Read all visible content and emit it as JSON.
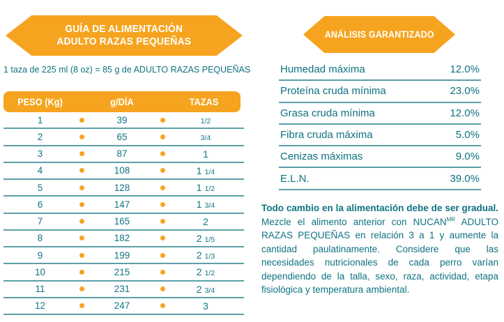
{
  "colors": {
    "accent_yellow": "#F6A41F",
    "teal_text": "#0E7280",
    "divider_teal": "#5C9FA8",
    "banner_text": "#FFFFFF"
  },
  "left": {
    "banner": {
      "line1": "GUÍA DE ALIMENTACIÓN",
      "line2": "ADULTO RAZAS PEQUEÑAS"
    },
    "subtitle": "1 taza de 225 ml (8 oz) = 85 g de ADULTO RAZAS PEQUEÑAS",
    "table": {
      "headers": [
        "PESO (Kg)",
        "g/DÍA",
        "TAZAS"
      ],
      "rows": [
        {
          "weight": "1",
          "grams": "39",
          "cups_whole": "",
          "cups_frac": "1/2"
        },
        {
          "weight": "2",
          "grams": "65",
          "cups_whole": "",
          "cups_frac": "3/4"
        },
        {
          "weight": "3",
          "grams": "87",
          "cups_whole": "1",
          "cups_frac": ""
        },
        {
          "weight": "4",
          "grams": "108",
          "cups_whole": "1",
          "cups_frac": "1/4"
        },
        {
          "weight": "5",
          "grams": "128",
          "cups_whole": "1",
          "cups_frac": "1/2"
        },
        {
          "weight": "6",
          "grams": "147",
          "cups_whole": "1",
          "cups_frac": "3/4"
        },
        {
          "weight": "7",
          "grams": "165",
          "cups_whole": "2",
          "cups_frac": ""
        },
        {
          "weight": "8",
          "grams": "182",
          "cups_whole": "2",
          "cups_frac": "1/5"
        },
        {
          "weight": "9",
          "grams": "199",
          "cups_whole": "2",
          "cups_frac": "1/3"
        },
        {
          "weight": "10",
          "grams": "215",
          "cups_whole": "2",
          "cups_frac": "1/2"
        },
        {
          "weight": "11",
          "grams": "231",
          "cups_whole": "2",
          "cups_frac": "3/4"
        },
        {
          "weight": "12",
          "grams": "247",
          "cups_whole": "3",
          "cups_frac": ""
        }
      ]
    }
  },
  "right": {
    "banner": "ANÁLISIS GARANTIZADO",
    "analysis_rows": [
      {
        "label": "Humedad máxima",
        "value": "12.0%"
      },
      {
        "label": "Proteína cruda mínima",
        "value": "23.0%"
      },
      {
        "label": "Grasa cruda mínima",
        "value": "12.0%"
      },
      {
        "label": "Fibra cruda máxima",
        "value": "5.0%"
      },
      {
        "label": "Cenizas máximas",
        "value": "9.0%"
      },
      {
        "label": "E.L.N.",
        "value": "39.0%"
      }
    ],
    "note": {
      "bold": "Todo cambio en la alimentación debe de ser gradual.",
      "before_sup": " Mezcle el alimento anterior con NUCAN",
      "sup": "MR",
      "after_sup": " ADULTO RAZAS PEQUEÑAS en relación 3 a 1 y aumente la cantidad paulatinamente. Considere que las necesidades nutricionales de cada perro varían dependiendo de la talla, sexo, raza, actividad, etapa fisiológica y temperatura ambiental."
    }
  }
}
